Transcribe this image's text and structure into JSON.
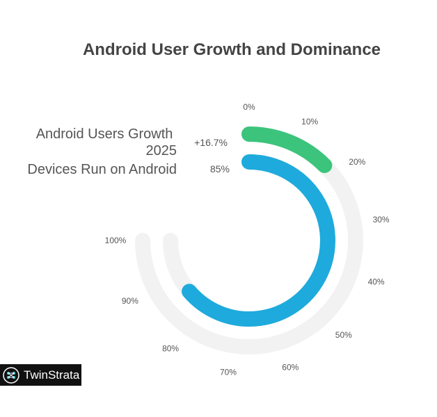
{
  "chart_data": {
    "type": "radial-bar",
    "title": "Android User Growth and Dominance",
    "axis": {
      "min": 0,
      "max": 100,
      "unit": "%",
      "ticks": [
        "0%",
        "10%",
        "20%",
        "30%",
        "40%",
        "50%",
        "60%",
        "70%",
        "80%",
        "90%",
        "100%"
      ]
    },
    "series": [
      {
        "name": "Android Users Growth 2025",
        "label": "+16.7%",
        "value": 16.7,
        "color": "#3cc47c"
      },
      {
        "name": "Devices Run on Android",
        "label": "85%",
        "value": 85,
        "color": "#1eaadc"
      }
    ],
    "track_color": "#f2f2f2"
  },
  "brand": {
    "name": "TwinStrata"
  }
}
